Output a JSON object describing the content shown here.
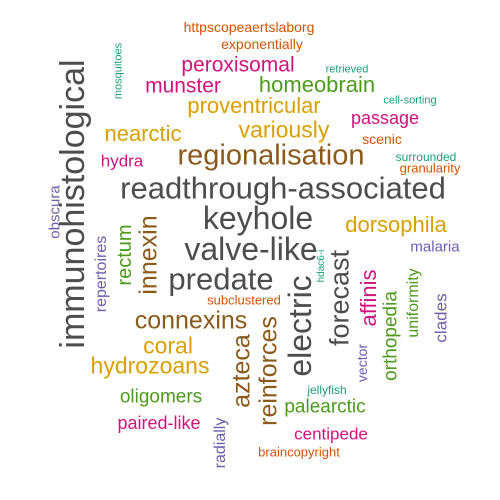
{
  "palette": {
    "dark_gray": "#4d4d4d",
    "mustard": "#d9a000",
    "brown": "#8b5a1a",
    "magenta": "#d0137e",
    "green": "#4e9a1d",
    "purple": "#6b5fb0",
    "orange": "#d35400",
    "teal": "#1b9e77"
  },
  "words": [
    {
      "text": "readthrough-associated",
      "color": "dark_gray"
    },
    {
      "text": "immunohistological",
      "color": "dark_gray"
    },
    {
      "text": "keyhole",
      "color": "dark_gray"
    },
    {
      "text": "valve-like",
      "color": "dark_gray"
    },
    {
      "text": "predate",
      "color": "dark_gray"
    },
    {
      "text": "regionalisation",
      "color": "brown"
    },
    {
      "text": "electric",
      "color": "dark_gray"
    },
    {
      "text": "forecast",
      "color": "dark_gray"
    },
    {
      "text": "connexins",
      "color": "brown"
    },
    {
      "text": "innexin",
      "color": "brown"
    },
    {
      "text": "reinforces",
      "color": "brown"
    },
    {
      "text": "azteca",
      "color": "brown"
    },
    {
      "text": "proventricular",
      "color": "mustard"
    },
    {
      "text": "variously",
      "color": "mustard"
    },
    {
      "text": "dorsophila",
      "color": "mustard"
    },
    {
      "text": "hydrozoans",
      "color": "mustard"
    },
    {
      "text": "coral",
      "color": "mustard"
    },
    {
      "text": "nearctic",
      "color": "mustard"
    },
    {
      "text": "homeobrain",
      "color": "green"
    },
    {
      "text": "munster",
      "color": "magenta"
    },
    {
      "text": "peroxisomal",
      "color": "magenta"
    },
    {
      "text": "passage",
      "color": "magenta"
    },
    {
      "text": "hydra",
      "color": "magenta"
    },
    {
      "text": "affinis",
      "color": "magenta"
    },
    {
      "text": "paired-like",
      "color": "magenta"
    },
    {
      "text": "centipede",
      "color": "magenta"
    },
    {
      "text": "oligomers",
      "color": "green"
    },
    {
      "text": "palearctic",
      "color": "green"
    },
    {
      "text": "rectum",
      "color": "green"
    },
    {
      "text": "orthopedia",
      "color": "green"
    },
    {
      "text": "uniformity",
      "color": "green"
    },
    {
      "text": "vector",
      "color": "purple"
    },
    {
      "text": "clades",
      "color": "purple"
    },
    {
      "text": "malaria",
      "color": "purple"
    },
    {
      "text": "repertoires",
      "color": "purple"
    },
    {
      "text": "obscura",
      "color": "purple"
    },
    {
      "text": "radially",
      "color": "purple"
    },
    {
      "text": "httpscopeaertslaborg",
      "color": "orange"
    },
    {
      "text": "exponentially",
      "color": "orange"
    },
    {
      "text": "scenic",
      "color": "orange"
    },
    {
      "text": "granularity",
      "color": "orange"
    },
    {
      "text": "subclustered",
      "color": "orange"
    },
    {
      "text": "braincopyright",
      "color": "orange"
    },
    {
      "text": "retrieved",
      "color": "teal"
    },
    {
      "text": "cell-sorting",
      "color": "teal"
    },
    {
      "text": "surrounded",
      "color": "teal"
    },
    {
      "text": "mosquitoes",
      "color": "teal"
    },
    {
      "text": "hdac6-i",
      "color": "teal"
    },
    {
      "text": "jellyfish",
      "color": "teal"
    }
  ]
}
